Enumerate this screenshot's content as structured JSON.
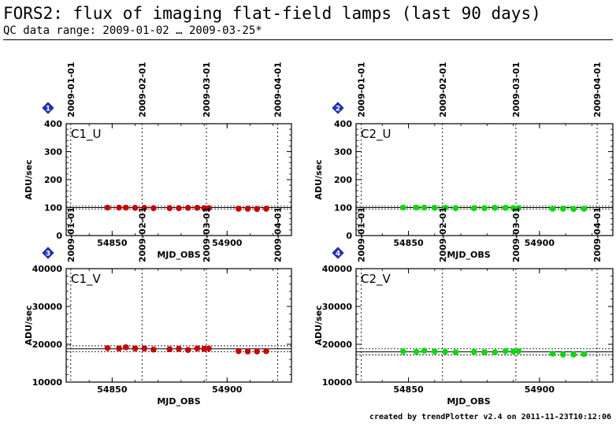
{
  "header": {
    "title": "FORS2: flux of imaging flat-field lamps (last 90 days)",
    "subtitle": "QC data range: 2009-01-02 … 2009-03-25*"
  },
  "footer": {
    "text": "created by trendPlotter v2.4 on 2011-11-23T10:12:06"
  },
  "date_ticks": [
    {
      "label": "2009-01-01",
      "mjd": 54832
    },
    {
      "label": "2009-02-01",
      "mjd": 54863
    },
    {
      "label": "2009-03-01",
      "mjd": 54891
    },
    {
      "label": "2009-04-01",
      "mjd": 54922
    }
  ],
  "chart_data": [
    {
      "type": "scatter",
      "badge": "1",
      "panel_label": "C1_U",
      "xlabel": "MJD_OBS",
      "ylabel": "ADU/sec",
      "xlim": [
        54830,
        54928
      ],
      "ylim": [
        0,
        400
      ],
      "xticks": [
        54850,
        54900
      ],
      "yticks": [
        0,
        100,
        200,
        300,
        400
      ],
      "point_color": "#cc0000",
      "reference": {
        "mean": 100,
        "lower": 95,
        "upper": 105
      },
      "x": [
        54848,
        54853,
        54856,
        54860,
        54864,
        54868,
        54875,
        54879,
        54883,
        54887,
        54890,
        54892,
        54905,
        54909,
        54913,
        54917
      ],
      "y": [
        100,
        100,
        100,
        99,
        99,
        98,
        98,
        98,
        99,
        99,
        98,
        98,
        96,
        96,
        95,
        96
      ]
    },
    {
      "type": "scatter",
      "badge": "2",
      "panel_label": "C2_U",
      "xlabel": "MJD_OBS",
      "ylabel": "ADU/sec",
      "xlim": [
        54830,
        54928
      ],
      "ylim": [
        0,
        400
      ],
      "xticks": [
        54850,
        54900
      ],
      "yticks": [
        0,
        100,
        200,
        300,
        400
      ],
      "point_color": "#00dd00",
      "reference": {
        "mean": 100,
        "lower": 95,
        "upper": 105
      },
      "x": [
        54848,
        54853,
        54856,
        54860,
        54864,
        54868,
        54875,
        54879,
        54883,
        54887,
        54890,
        54892,
        54905,
        54909,
        54913,
        54917
      ],
      "y": [
        100,
        100,
        100,
        99,
        99,
        98,
        98,
        98,
        99,
        99,
        98,
        98,
        96,
        96,
        95,
        96
      ]
    },
    {
      "type": "scatter",
      "badge": "3",
      "panel_label": "C1_V",
      "xlabel": "MJD_OBS",
      "ylabel": "ADU/sec",
      "xlim": [
        54830,
        54928
      ],
      "ylim": [
        10000,
        40000
      ],
      "xticks": [
        54850,
        54900
      ],
      "yticks": [
        10000,
        20000,
        30000,
        40000
      ],
      "point_color": "#cc0000",
      "reference": {
        "mean": 18800,
        "lower": 18000,
        "upper": 19600
      },
      "x": [
        54848,
        54853,
        54856,
        54860,
        54864,
        54868,
        54875,
        54879,
        54883,
        54887,
        54890,
        54892,
        54905,
        54909,
        54913,
        54917
      ],
      "y": [
        19000,
        18900,
        19200,
        18900,
        18900,
        18600,
        18700,
        18800,
        18500,
        18900,
        18800,
        18900,
        18200,
        18100,
        18100,
        18200
      ]
    },
    {
      "type": "scatter",
      "badge": "4",
      "panel_label": "C2_V",
      "xlabel": "MJD_OBS",
      "ylabel": "ADU/sec",
      "xlim": [
        54830,
        54928
      ],
      "ylim": [
        10000,
        40000
      ],
      "xticks": [
        54850,
        54900
      ],
      "yticks": [
        10000,
        20000,
        30000,
        40000
      ],
      "point_color": "#00dd00",
      "reference": {
        "mean": 18000,
        "lower": 17200,
        "upper": 18800
      },
      "x": [
        54848,
        54853,
        54856,
        54860,
        54864,
        54868,
        54875,
        54879,
        54883,
        54887,
        54890,
        54892,
        54905,
        54909,
        54913,
        54917
      ],
      "y": [
        18100,
        18000,
        18300,
        18100,
        18000,
        17900,
        18000,
        17900,
        17900,
        18200,
        18100,
        18200,
        17500,
        17300,
        17300,
        17400
      ]
    }
  ]
}
